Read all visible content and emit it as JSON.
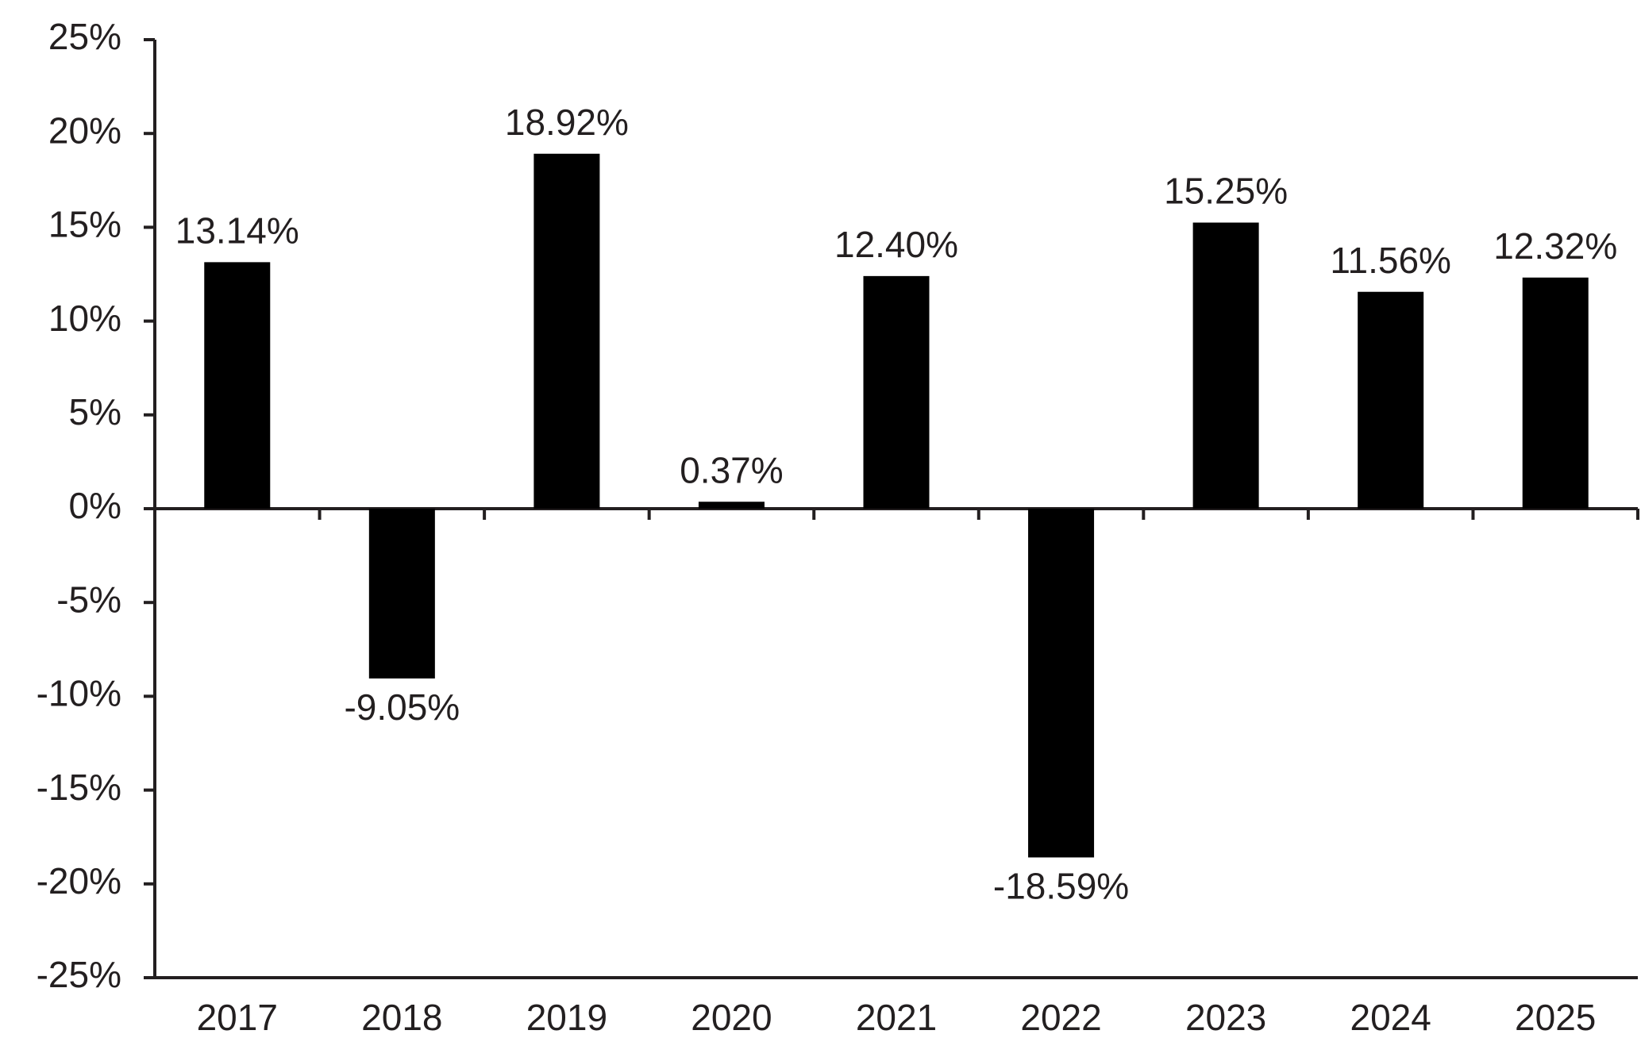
{
  "chart_data": {
    "type": "bar",
    "categories": [
      "2017",
      "2018",
      "2019",
      "2020",
      "2021",
      "2022",
      "2023",
      "2024",
      "2025"
    ],
    "values": [
      13.14,
      -9.05,
      18.92,
      0.37,
      12.4,
      -18.59,
      15.25,
      11.56,
      12.32
    ],
    "value_labels": [
      "13.14%",
      "-9.05%",
      "18.92%",
      "0.37%",
      "12.40%",
      "-18.59%",
      "15.25%",
      "11.56%",
      "12.32%"
    ],
    "color": "#000000",
    "ylim": [
      -25,
      25
    ],
    "yticks": [
      {
        "value": -25,
        "label": "-25%"
      },
      {
        "value": -20,
        "label": "-20%"
      },
      {
        "value": -15,
        "label": "-15%"
      },
      {
        "value": -10,
        "label": "-10%"
      },
      {
        "value": -5,
        "label": "-5%"
      },
      {
        "value": 0,
        "label": "0%"
      },
      {
        "value": 5,
        "label": "5%"
      },
      {
        "value": 10,
        "label": "10%"
      },
      {
        "value": 15,
        "label": "15%"
      },
      {
        "value": 20,
        "label": "20%"
      },
      {
        "value": 25,
        "label": "25%"
      }
    ],
    "grid": false
  }
}
